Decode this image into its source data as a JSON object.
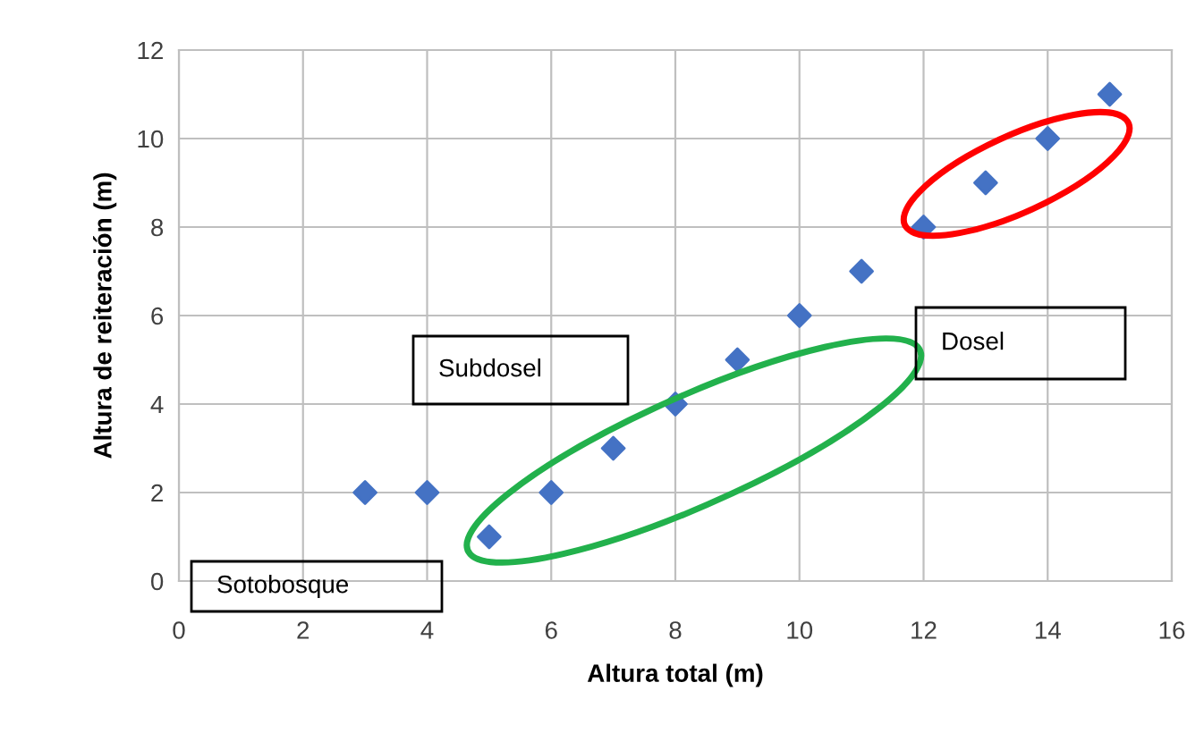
{
  "chart_data": {
    "type": "scatter",
    "xlabel": "Altura total (m)",
    "ylabel": "Altura de reiteración (m)",
    "x": [
      3,
      4,
      5,
      6,
      7,
      8,
      9,
      10,
      11,
      12,
      13,
      14,
      15
    ],
    "values": [
      2,
      2,
      1,
      2,
      3,
      4,
      5,
      6,
      7,
      8,
      9,
      10,
      11
    ],
    "color": "#4472c4",
    "marker": "diamond",
    "xlim": [
      0,
      16
    ],
    "xticks": [
      0,
      2,
      4,
      6,
      8,
      10,
      12,
      14,
      16
    ],
    "ylim": [
      0,
      12
    ],
    "yticks": [
      0,
      2,
      4,
      6,
      8,
      10,
      12
    ],
    "grid": true,
    "annotations": [
      "Sotobosque",
      "Subdosel",
      "Dosel"
    ]
  }
}
